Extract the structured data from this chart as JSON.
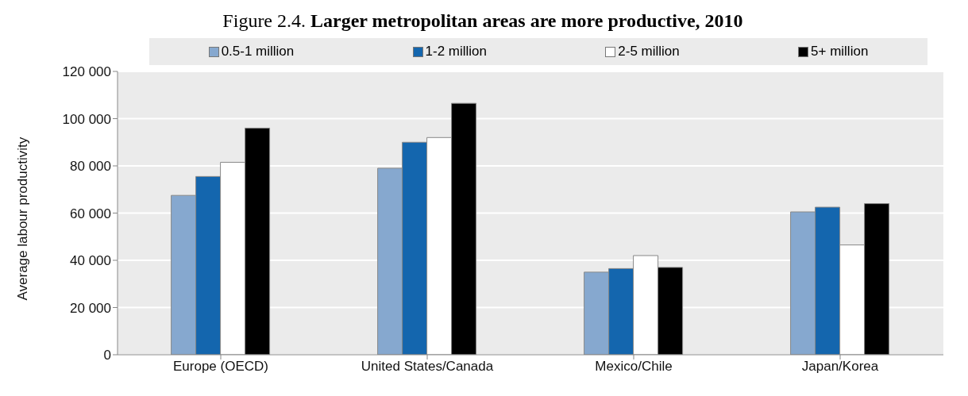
{
  "chart_data": {
    "type": "bar",
    "title": "Figure 2.4. Larger metropolitan areas are more productive, 2010",
    "ylabel": "Average labour productivity",
    "categories": [
      "Europe (OECD)",
      "United States/Canada",
      "Mexico/Chile",
      "Japan/Korea"
    ],
    "series": [
      {
        "name": "0.5-1 million",
        "color": "#86a8cf",
        "values": [
          67500,
          79000,
          35000,
          60500
        ]
      },
      {
        "name": "1-2 million",
        "color": "#1466ae",
        "values": [
          75500,
          90000,
          36500,
          62500
        ]
      },
      {
        "name": "2-5 million",
        "color": "#ffffff",
        "values": [
          81500,
          92000,
          42000,
          46500
        ]
      },
      {
        "name": "5+ million",
        "color": "#000000",
        "values": [
          96000,
          106500,
          37000,
          64000
        ]
      }
    ],
    "ylim": [
      0,
      120000
    ],
    "yticks": [
      {
        "value": 0,
        "label": "0"
      },
      {
        "value": 20000,
        "label": "20 000"
      },
      {
        "value": 40000,
        "label": "40 000"
      },
      {
        "value": 60000,
        "label": "60 000"
      },
      {
        "value": 80000,
        "label": "80 000"
      },
      {
        "value": 100000,
        "label": "100 000"
      },
      {
        "value": 120000,
        "label": "120 000"
      }
    ],
    "grid": "y",
    "legend": "top"
  }
}
